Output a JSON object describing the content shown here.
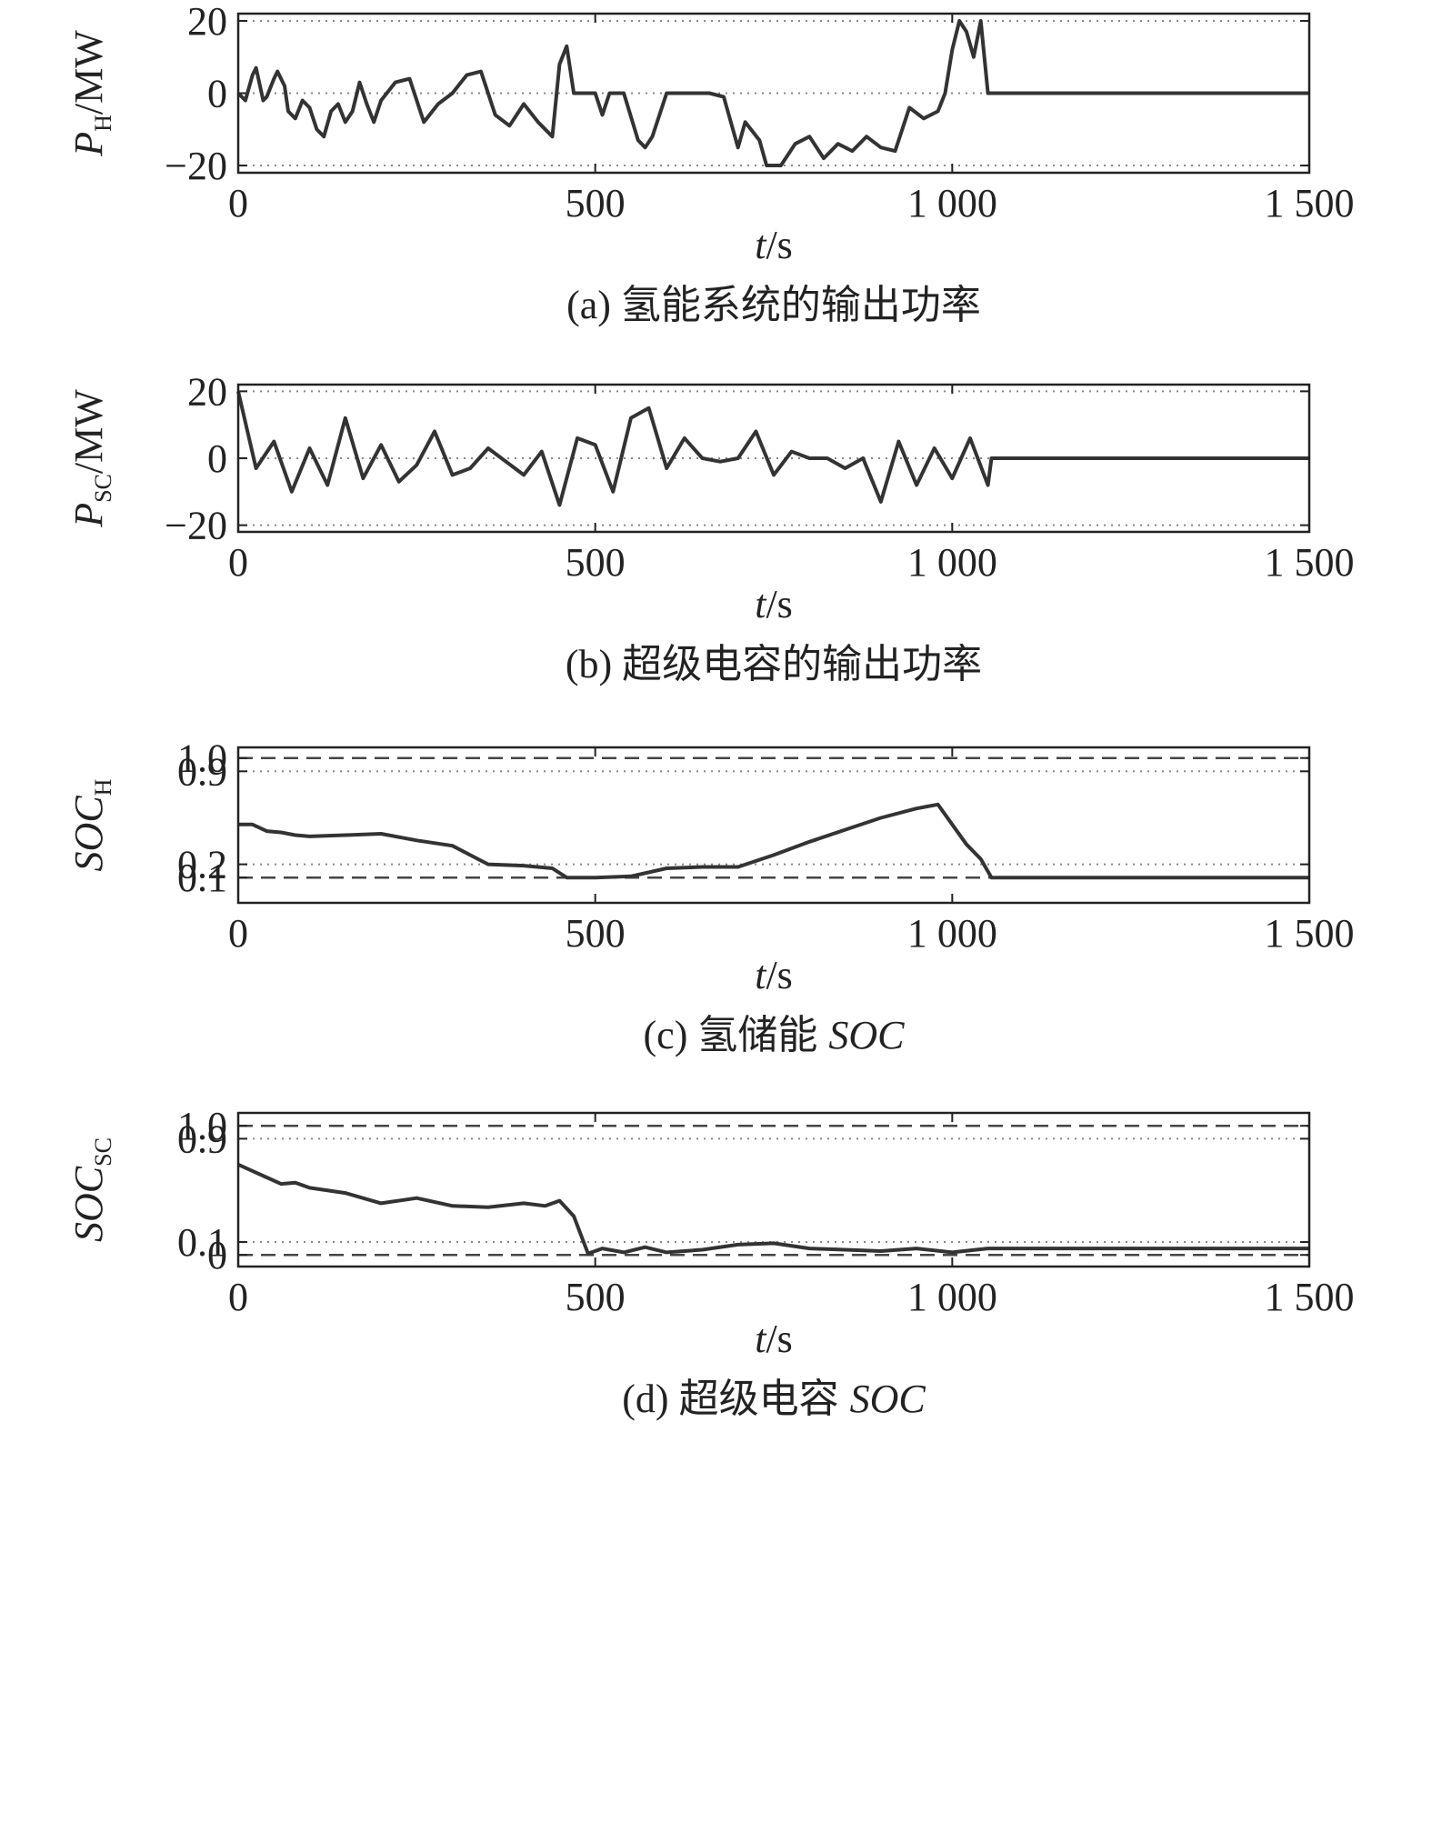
{
  "chart_data": [
    {
      "type": "line",
      "caption": {
        "label": "(a) 氢能系统的输出功率"
      },
      "ylabel": {
        "symbol": "P",
        "subscript": "H",
        "unit": "/MW"
      },
      "xlabel": {
        "symbol": "t",
        "unit": "/s"
      },
      "xlim": [
        0,
        1500
      ],
      "xticks": [
        0,
        500,
        {
          "value": 1000,
          "label": "1 000"
        },
        {
          "value": 1500,
          "label": "1 500"
        }
      ],
      "ylim": [
        -22,
        22
      ],
      "yticks": [
        20,
        0,
        {
          "value": -20,
          "label": "−20"
        }
      ],
      "hlines": [
        {
          "value": 20,
          "style": "dotted"
        },
        {
          "value": 0,
          "style": "dotted"
        },
        {
          "value": -20,
          "style": "dotted"
        }
      ],
      "color": "#333333",
      "x": [
        0,
        10,
        20,
        25,
        35,
        40,
        50,
        55,
        65,
        70,
        80,
        90,
        100,
        110,
        120,
        130,
        140,
        150,
        160,
        170,
        180,
        190,
        200,
        220,
        240,
        260,
        280,
        300,
        320,
        340,
        360,
        380,
        400,
        420,
        440,
        450,
        460,
        470,
        500,
        510,
        520,
        540,
        560,
        570,
        580,
        600,
        620,
        640,
        660,
        680,
        700,
        710,
        730,
        740,
        760,
        780,
        800,
        820,
        840,
        860,
        880,
        900,
        920,
        940,
        960,
        980,
        990,
        1000,
        1010,
        1020,
        1030,
        1040,
        1050,
        1055,
        1500
      ],
      "values": [
        0,
        -2,
        5,
        7,
        -2,
        -1,
        4,
        6,
        2,
        -5,
        -7,
        -2,
        -4,
        -10,
        -12,
        -5,
        -3,
        -8,
        -5,
        3,
        -3,
        -8,
        -2,
        3,
        4,
        -8,
        -3,
        0,
        5,
        6,
        -6,
        -9,
        -3,
        -8,
        -12,
        8,
        13,
        0,
        0,
        -6,
        0,
        0,
        -13,
        -15,
        -12,
        0,
        0,
        0,
        0,
        -1,
        -15,
        -8,
        -13,
        -20,
        -20,
        -14,
        -12,
        -18,
        -14,
        -16,
        -12,
        -15,
        -16,
        -4,
        -7,
        -5,
        0,
        12,
        20,
        17,
        10,
        20,
        0,
        0,
        0
      ]
    },
    {
      "type": "line",
      "caption": {
        "label": "(b) 超级电容的输出功率"
      },
      "ylabel": {
        "symbol": "P",
        "subscript": "SC",
        "unit": "/MW"
      },
      "xlabel": {
        "symbol": "t",
        "unit": "/s"
      },
      "xlim": [
        0,
        1500
      ],
      "xticks": [
        0,
        500,
        {
          "value": 1000,
          "label": "1 000"
        },
        {
          "value": 1500,
          "label": "1 500"
        }
      ],
      "ylim": [
        -22,
        22
      ],
      "yticks": [
        20,
        0,
        {
          "value": -20,
          "label": "−20"
        }
      ],
      "hlines": [
        {
          "value": 20,
          "style": "dotted"
        },
        {
          "value": 0,
          "style": "dotted"
        },
        {
          "value": -20,
          "style": "dotted"
        }
      ],
      "color": "#333333",
      "x": [
        0,
        25,
        50,
        75,
        100,
        125,
        150,
        175,
        200,
        225,
        250,
        275,
        300,
        325,
        350,
        375,
        400,
        425,
        450,
        475,
        500,
        525,
        550,
        575,
        600,
        625,
        650,
        675,
        700,
        725,
        750,
        775,
        800,
        825,
        850,
        875,
        900,
        925,
        950,
        975,
        1000,
        1025,
        1050,
        1055,
        1500
      ],
      "values": [
        20,
        -3,
        5,
        -10,
        3,
        -8,
        12,
        -6,
        4,
        -7,
        -2,
        8,
        -5,
        -3,
        3,
        -1,
        -5,
        2,
        -14,
        6,
        4,
        -10,
        12,
        15,
        -3,
        6,
        0,
        -1,
        0,
        8,
        -5,
        2,
        0,
        0,
        -3,
        0,
        -13,
        5,
        -8,
        3,
        -6,
        6,
        -8,
        0,
        0
      ]
    },
    {
      "type": "line",
      "caption": {
        "label": "(c) 氢储能",
        "symbol": "SOC"
      },
      "ylabel": {
        "symbol": "SOC",
        "subscript": "H"
      },
      "xlabel": {
        "symbol": "t",
        "unit": "/s"
      },
      "xlim": [
        0,
        1500
      ],
      "xticks": [
        0,
        500,
        {
          "value": 1000,
          "label": "1 000"
        },
        {
          "value": 1500,
          "label": "1 500"
        }
      ],
      "ylim": [
        -0.09,
        1.08
      ],
      "yticks": [
        {
          "value": 1,
          "label": "1.0"
        },
        0.9,
        0.2,
        0.1
      ],
      "hlines": [
        {
          "value": 1,
          "style": "dashed"
        },
        {
          "value": 0.9,
          "style": "dotted"
        },
        {
          "value": 0.2,
          "style": "dotted"
        },
        {
          "value": 0.1,
          "style": "dashed"
        }
      ],
      "color": "#333333",
      "x": [
        0,
        20,
        40,
        60,
        80,
        100,
        150,
        200,
        250,
        300,
        350,
        400,
        440,
        460,
        500,
        550,
        600,
        650,
        700,
        750,
        800,
        850,
        900,
        950,
        980,
        1000,
        1020,
        1040,
        1055,
        1500
      ],
      "values": [
        0.5,
        0.5,
        0.45,
        0.44,
        0.42,
        0.41,
        0.42,
        0.43,
        0.38,
        0.34,
        0.2,
        0.19,
        0.17,
        0.1,
        0.1,
        0.11,
        0.17,
        0.18,
        0.18,
        0.27,
        0.37,
        0.46,
        0.55,
        0.62,
        0.65,
        0.5,
        0.35,
        0.24,
        0.1,
        0.1
      ]
    },
    {
      "type": "line",
      "caption": {
        "label": "(d) 超级电容",
        "symbol": "SOC"
      },
      "ylabel": {
        "symbol": "SOC",
        "subscript": "SC"
      },
      "xlabel": {
        "symbol": "t",
        "unit": "/s"
      },
      "xlim": [
        0,
        1500
      ],
      "xticks": [
        0,
        500,
        {
          "value": 1000,
          "label": "1 000"
        },
        {
          "value": 1500,
          "label": "1 500"
        }
      ],
      "ylim": [
        -0.09,
        1.1
      ],
      "yticks": [
        {
          "value": 1,
          "label": "1.0"
        },
        0.9,
        0.1,
        0
      ],
      "hlines": [
        {
          "value": 1,
          "style": "dashed"
        },
        {
          "value": 0.9,
          "style": "dotted"
        },
        {
          "value": 0.1,
          "style": "dotted"
        },
        {
          "value": 0,
          "style": "dashed"
        }
      ],
      "color": "#333333",
      "x": [
        0,
        20,
        40,
        60,
        80,
        100,
        150,
        200,
        250,
        300,
        350,
        400,
        430,
        450,
        470,
        490,
        510,
        540,
        570,
        600,
        650,
        700,
        750,
        800,
        850,
        900,
        950,
        1000,
        1050,
        1500
      ],
      "values": [
        0.7,
        0.65,
        0.6,
        0.55,
        0.56,
        0.52,
        0.48,
        0.4,
        0.44,
        0.38,
        0.37,
        0.4,
        0.38,
        0.42,
        0.3,
        0.01,
        0.05,
        0.02,
        0.06,
        0.02,
        0.04,
        0.08,
        0.09,
        0.05,
        0.04,
        0.03,
        0.05,
        0.02,
        0.05,
        0.05
      ]
    }
  ]
}
